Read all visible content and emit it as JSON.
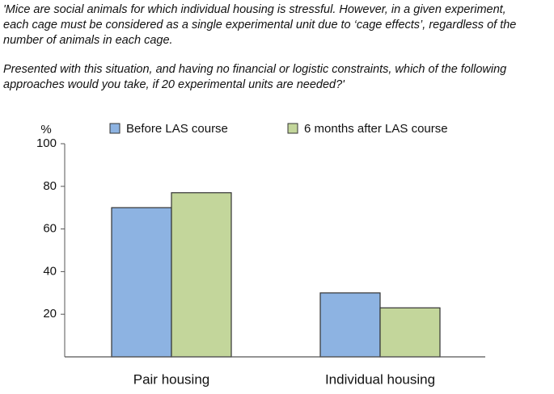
{
  "quote": {
    "paragraph_1": [
      "'Mice are social animals for which individual housing is stressful. However, in a given experiment,",
      "each cage must be considered as a single experimental unit due to ‘cage effects’, regardless of the",
      "number of animals in each cage."
    ],
    "paragraph_2": [
      "Presented with this situation, and having no financial or logistic constraints, which of the following",
      "approaches would you take, if 20 experimental units are needed?'"
    ]
  },
  "chart_data": {
    "type": "bar",
    "y_label": "%",
    "categories": [
      "Pair housing",
      "Individual housing"
    ],
    "series": [
      {
        "name": "Before LAS course",
        "color": "#8db3e2",
        "values": [
          70,
          30
        ]
      },
      {
        "name": "6 months after LAS course",
        "color": "#c3d69b",
        "values": [
          77,
          23
        ]
      }
    ],
    "ylim": [
      0,
      100
    ],
    "yticks": [
      20,
      40,
      60,
      80,
      100
    ],
    "grid": false
  }
}
